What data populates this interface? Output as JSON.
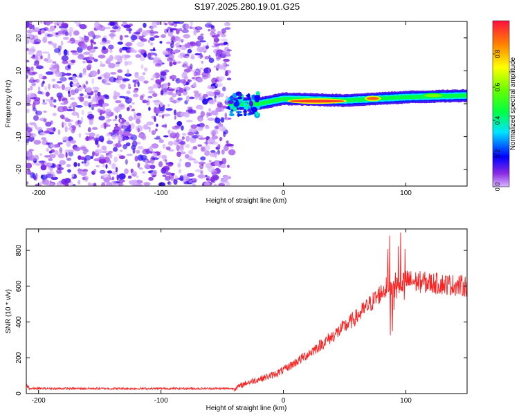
{
  "title": "S197.2025.280.19.01.G25",
  "chart_data": [
    {
      "type": "heatmap",
      "xlabel": "Height of straight line (km)",
      "ylabel": "Frequency (Hz)",
      "xlim": [
        -210,
        150
      ],
      "ylim": [
        -25,
        25
      ],
      "xticks": [
        -200,
        -100,
        0,
        100
      ],
      "yticks": [
        -20,
        -10,
        0,
        10,
        20
      ],
      "noise_region_x": [
        -210,
        -45
      ],
      "signal_region_x": [
        -45,
        150
      ],
      "signal_track": [
        {
          "x": -45,
          "y": 0
        },
        {
          "x": -20,
          "y": 0
        },
        {
          "x": 0,
          "y": 1.5
        },
        {
          "x": 50,
          "y": 1.0
        },
        {
          "x": 100,
          "y": 2.0
        },
        {
          "x": 150,
          "y": 2.5
        }
      ],
      "peak_regions": [
        {
          "x0": 5,
          "x1": 50,
          "y": 0.8,
          "amp": 0.95
        },
        {
          "x0": 68,
          "x1": 78,
          "y": 1.6,
          "amp": 0.9
        },
        {
          "x0": 115,
          "x1": 130,
          "y": 2.5,
          "amp": 0.6
        }
      ],
      "colorbar": {
        "label": "Normalized spectral amplitude",
        "range": [
          0,
          1
        ],
        "ticks": [
          "0.0",
          "0.2",
          "0.4",
          "0.6",
          "0.8"
        ]
      }
    },
    {
      "type": "line",
      "xlabel": "Height of straight line (km)",
      "ylabel": "SNR (10 * v/v)",
      "xlim": [
        -210,
        150
      ],
      "ylim": [
        0,
        920
      ],
      "xticks": [
        -200,
        -100,
        0,
        100
      ],
      "yticks": [
        0,
        200,
        400,
        600,
        800
      ],
      "series": [
        {
          "name": "SNR",
          "color": "#ff2020",
          "envelope": [
            {
              "x": -210,
              "y": 28
            },
            {
              "x": -40,
              "y": 28
            },
            {
              "x": -30,
              "y": 60
            },
            {
              "x": -10,
              "y": 100
            },
            {
              "x": 0,
              "y": 130
            },
            {
              "x": 20,
              "y": 220
            },
            {
              "x": 40,
              "y": 320
            },
            {
              "x": 60,
              "y": 430
            },
            {
              "x": 75,
              "y": 530
            },
            {
              "x": 85,
              "y": 600
            },
            {
              "x": 100,
              "y": 630
            },
            {
              "x": 150,
              "y": 600
            }
          ],
          "bursts": [
            {
              "x0": 84,
              "x1": 104,
              "amp": 280
            }
          ]
        }
      ]
    }
  ]
}
